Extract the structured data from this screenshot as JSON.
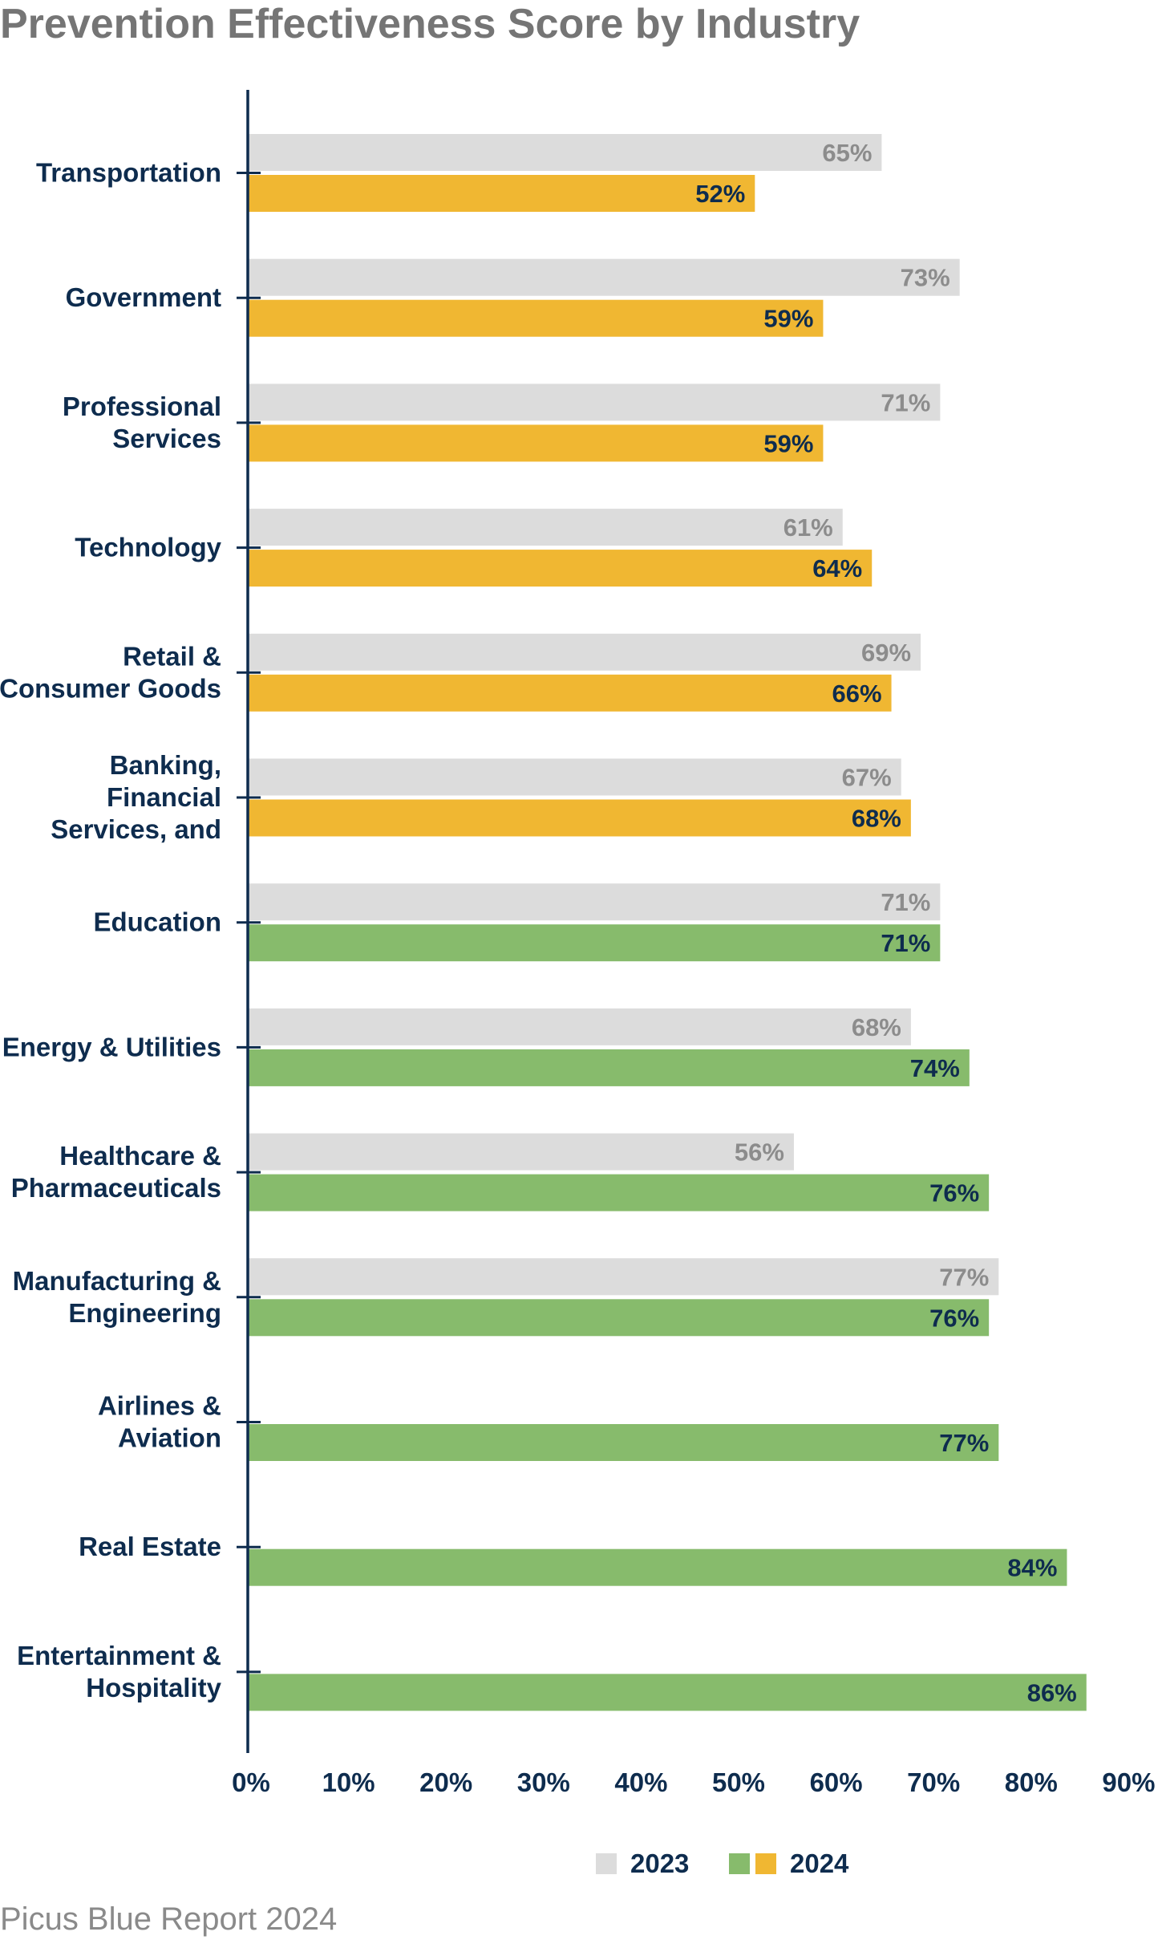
{
  "chart_data": {
    "type": "bar",
    "orientation": "horizontal",
    "title": "Prevention Effectiveness Score by Industry",
    "categories": [
      "Transportation",
      "Government",
      "Professional Services",
      "Technology",
      "Retail & Consumer Goods",
      "Banking, Financial Services, and",
      "Education",
      "Energy & Utilities",
      "Healthcare & Pharmaceuticals",
      "Manufacturing & Engineering",
      "Airlines & Aviation",
      "Real Estate",
      "Entertainment & Hospitality"
    ],
    "category_lines": [
      [
        "Transportation"
      ],
      [
        "Government"
      ],
      [
        "Professional",
        "Services"
      ],
      [
        "Technology"
      ],
      [
        "Retail &",
        "Consumer Goods"
      ],
      [
        "Banking,",
        "Financial",
        "Services, and"
      ],
      [
        "Education"
      ],
      [
        "Energy & Utilities"
      ],
      [
        "Healthcare &",
        "Pharmaceuticals"
      ],
      [
        "Manufacturing &",
        "Engineering"
      ],
      [
        "Airlines &",
        "Aviation"
      ],
      [
        "Real Estate"
      ],
      [
        "Entertainment &",
        "Hospitality"
      ]
    ],
    "series": [
      {
        "name": "2023",
        "values": [
          65,
          73,
          71,
          61,
          69,
          67,
          71,
          68,
          56,
          77,
          null,
          null,
          null
        ]
      },
      {
        "name": "2024",
        "values": [
          52,
          59,
          59,
          64,
          66,
          68,
          71,
          74,
          76,
          76,
          77,
          84,
          86
        ]
      }
    ],
    "data_labels": {
      "2023": [
        "65%",
        "73%",
        "71%",
        "61%",
        "69%",
        "67%",
        "71%",
        "68%",
        "56%",
        "77%",
        "",
        "",
        ""
      ],
      "2024": [
        "52%",
        "59%",
        "59%",
        "64%",
        "66%",
        "68%",
        "71%",
        "74%",
        "76%",
        "76%",
        "77%",
        "84%",
        "86%"
      ]
    },
    "xlim": [
      0,
      90
    ],
    "xticks": [
      "0%",
      "10%",
      "20%",
      "30%",
      "40%",
      "50%",
      "60%",
      "70%",
      "80%",
      "90%"
    ],
    "xlabel": "",
    "ylabel": "",
    "grid": false,
    "legend_position": "bottom",
    "legend": [
      {
        "label": "2023",
        "colors": [
          "#dcdcdc"
        ]
      },
      {
        "label": "2024",
        "colors": [
          "#87bb6c",
          "#f0b732"
        ]
      }
    ],
    "colors": {
      "series_2023": "#dcdcdc",
      "series_2024_below": "#f0b732",
      "series_2024_above": "#87bb6c",
      "axis": "#0e2c4e"
    },
    "bar_2024_color_by_category": [
      "#f0b732",
      "#f0b732",
      "#f0b732",
      "#f0b732",
      "#f0b732",
      "#f0b732",
      "#87bb6c",
      "#87bb6c",
      "#87bb6c",
      "#87bb6c",
      "#87bb6c",
      "#87bb6c",
      "#87bb6c"
    ]
  },
  "footer": "Picus Blue Report 2024"
}
